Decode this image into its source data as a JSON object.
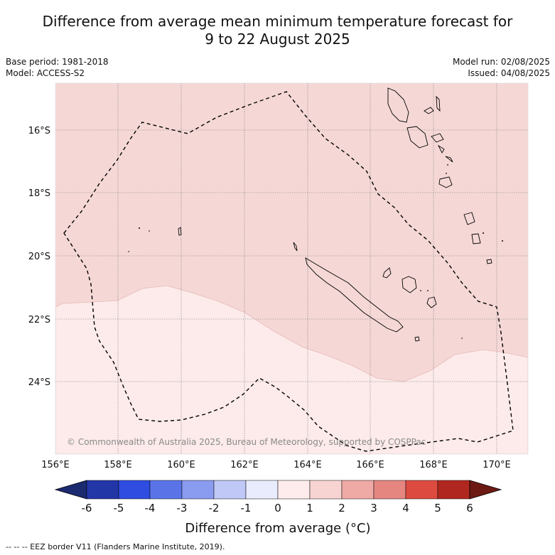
{
  "title_line1": "Difference from average mean minimum temperature forecast for",
  "title_line2": "9 to 22 August 2025",
  "base_period": "Base period: 1981-2018",
  "model": "Model: ACCESS-S2",
  "model_run": "Model run: 02/08/2025",
  "issued": "Issued: 04/08/2025",
  "x_ticks": [
    "156°E",
    "158°E",
    "160°E",
    "162°E",
    "164°E",
    "166°E",
    "168°E",
    "170°E"
  ],
  "y_ticks": [
    "16°S",
    "18°S",
    "20°S",
    "22°S",
    "24°S"
  ],
  "copyright": "© Commonwealth of Australia 2025, Bureau of Meteorology, supported by COSPPac",
  "colorbar": {
    "title": "Difference from average (°C)",
    "labels": [
      "-6",
      "-5",
      "-4",
      "-3",
      "-2",
      "-1",
      "0",
      "1",
      "2",
      "3",
      "4",
      "5",
      "6"
    ],
    "colors": [
      "#1c2a70",
      "#2336a8",
      "#2f4de0",
      "#5a74e8",
      "#8a9cf0",
      "#bfc8f6",
      "#e8ecfc",
      "#fdeceb",
      "#f7d4d2",
      "#efaaa6",
      "#e58680",
      "#dd4b40",
      "#b0271f",
      "#6e1a14"
    ]
  },
  "legend_footer": "-- -- -- EEZ border V11 (Flanders Marine Institute, 2019).",
  "map": {
    "field_colors": {
      "zero_to_one": "#fcebea",
      "one_to_two": "#f5d8d6"
    },
    "coast_color": "#000000",
    "eez_color": "#000000"
  }
}
